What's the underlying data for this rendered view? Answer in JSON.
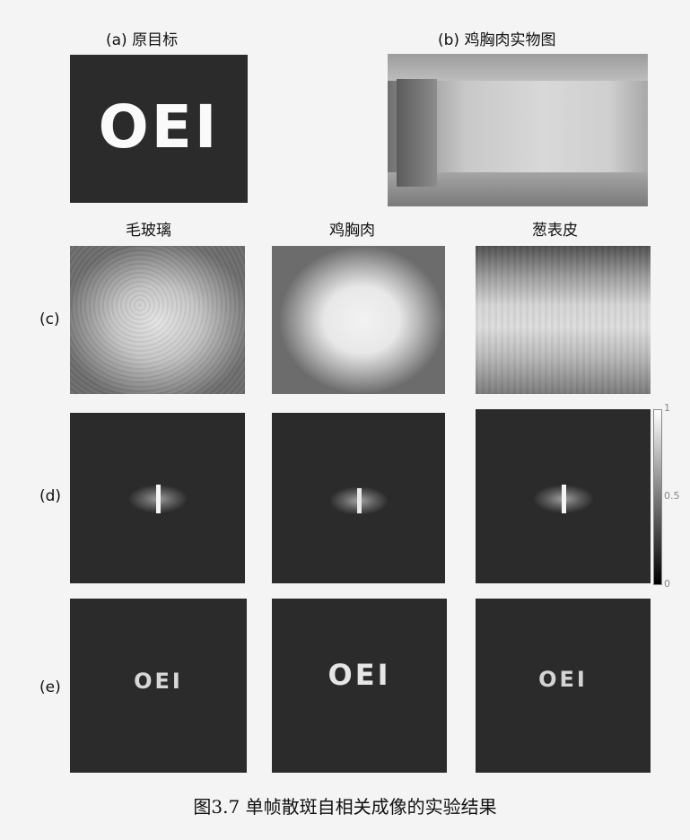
{
  "panel_a": {
    "title": "(a) 原目标",
    "target_text": "OEI"
  },
  "panel_b": {
    "title": "(b) 鸡胸肉实物图"
  },
  "columns": [
    "毛玻璃",
    "鸡胸肉",
    "葱表皮"
  ],
  "rows": {
    "c": "(c)",
    "d": "(d)",
    "e": "(e)"
  },
  "colorbar": {
    "max": "1",
    "mid": "0.5",
    "min": "0"
  },
  "reconstruction_text": "OEI",
  "caption": "图3.7  单帧散斑自相关成像的实验结果"
}
